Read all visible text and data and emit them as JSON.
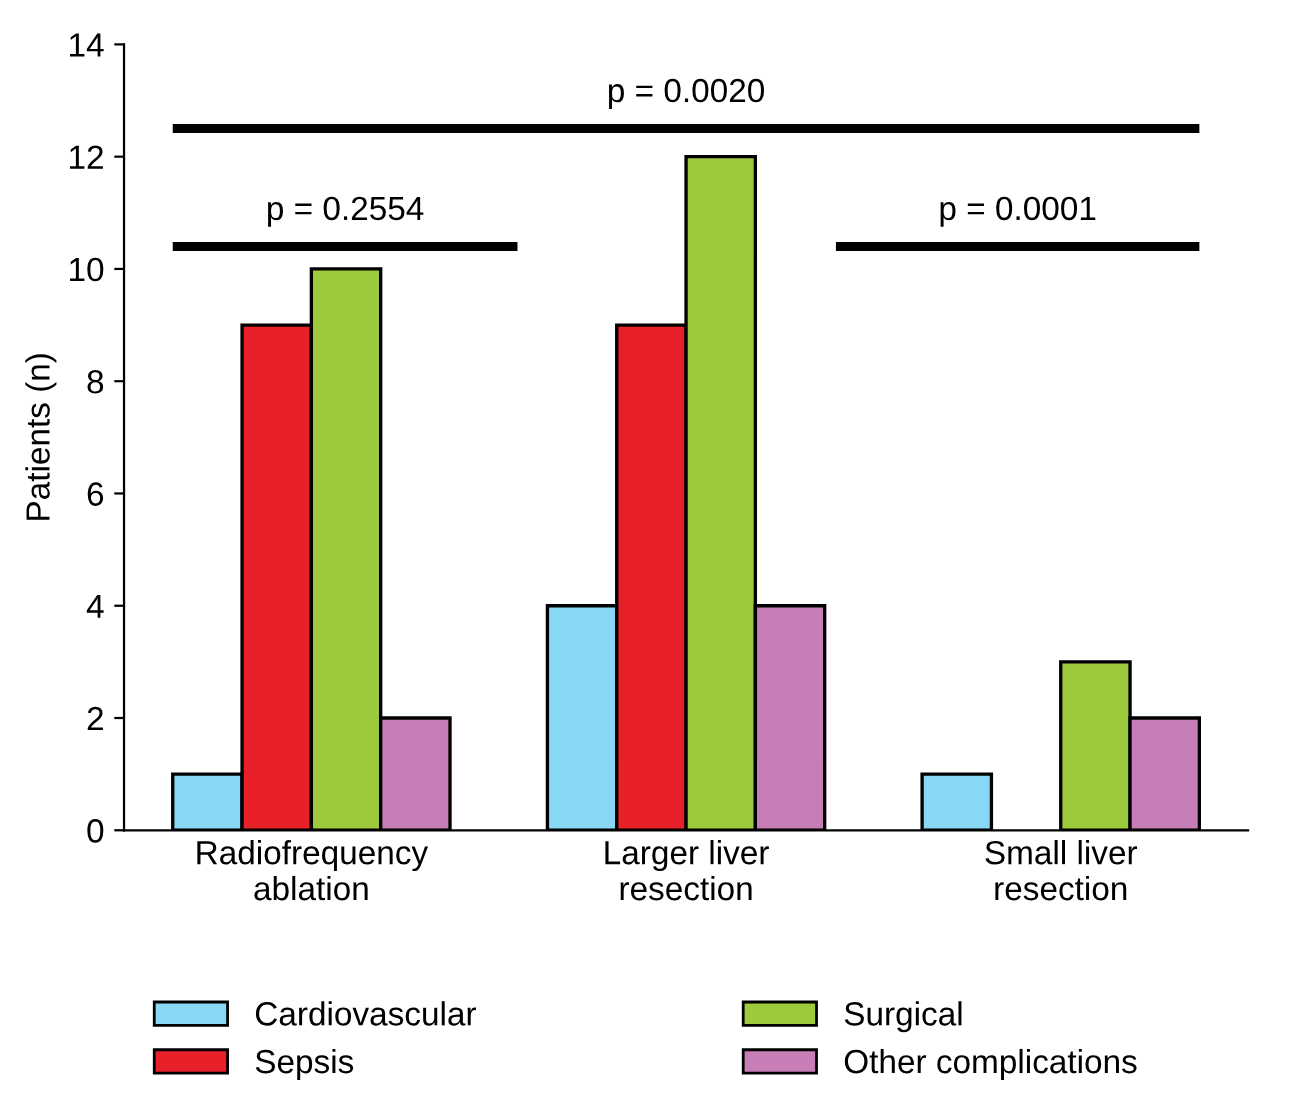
{
  "chart_data": {
    "type": "bar",
    "ylabel": "Patients (n)",
    "categories": [
      "Radiofrequency\nablation",
      "Larger liver\nresection",
      "Small liver\nresection"
    ],
    "series": [
      {
        "name": "Cardiovascular",
        "color": "#87d8f5",
        "values": [
          1,
          4,
          1
        ]
      },
      {
        "name": "Sepsis",
        "color": "#e8202a",
        "values": [
          9,
          9,
          0
        ]
      },
      {
        "name": "Surgical",
        "color": "#9dc93c",
        "values": [
          10,
          12,
          3
        ]
      },
      {
        "name": "Other complications",
        "color": "#c77db5",
        "values": [
          2,
          4,
          2
        ]
      }
    ],
    "ylim": [
      0,
      14
    ],
    "yticks": [
      0,
      2,
      4,
      6,
      8,
      10,
      12,
      14
    ],
    "grid": false,
    "legend": "bottom",
    "annotations": [
      "p = 0.0020",
      "p = 0.2554",
      "p = 0.0001"
    ]
  }
}
